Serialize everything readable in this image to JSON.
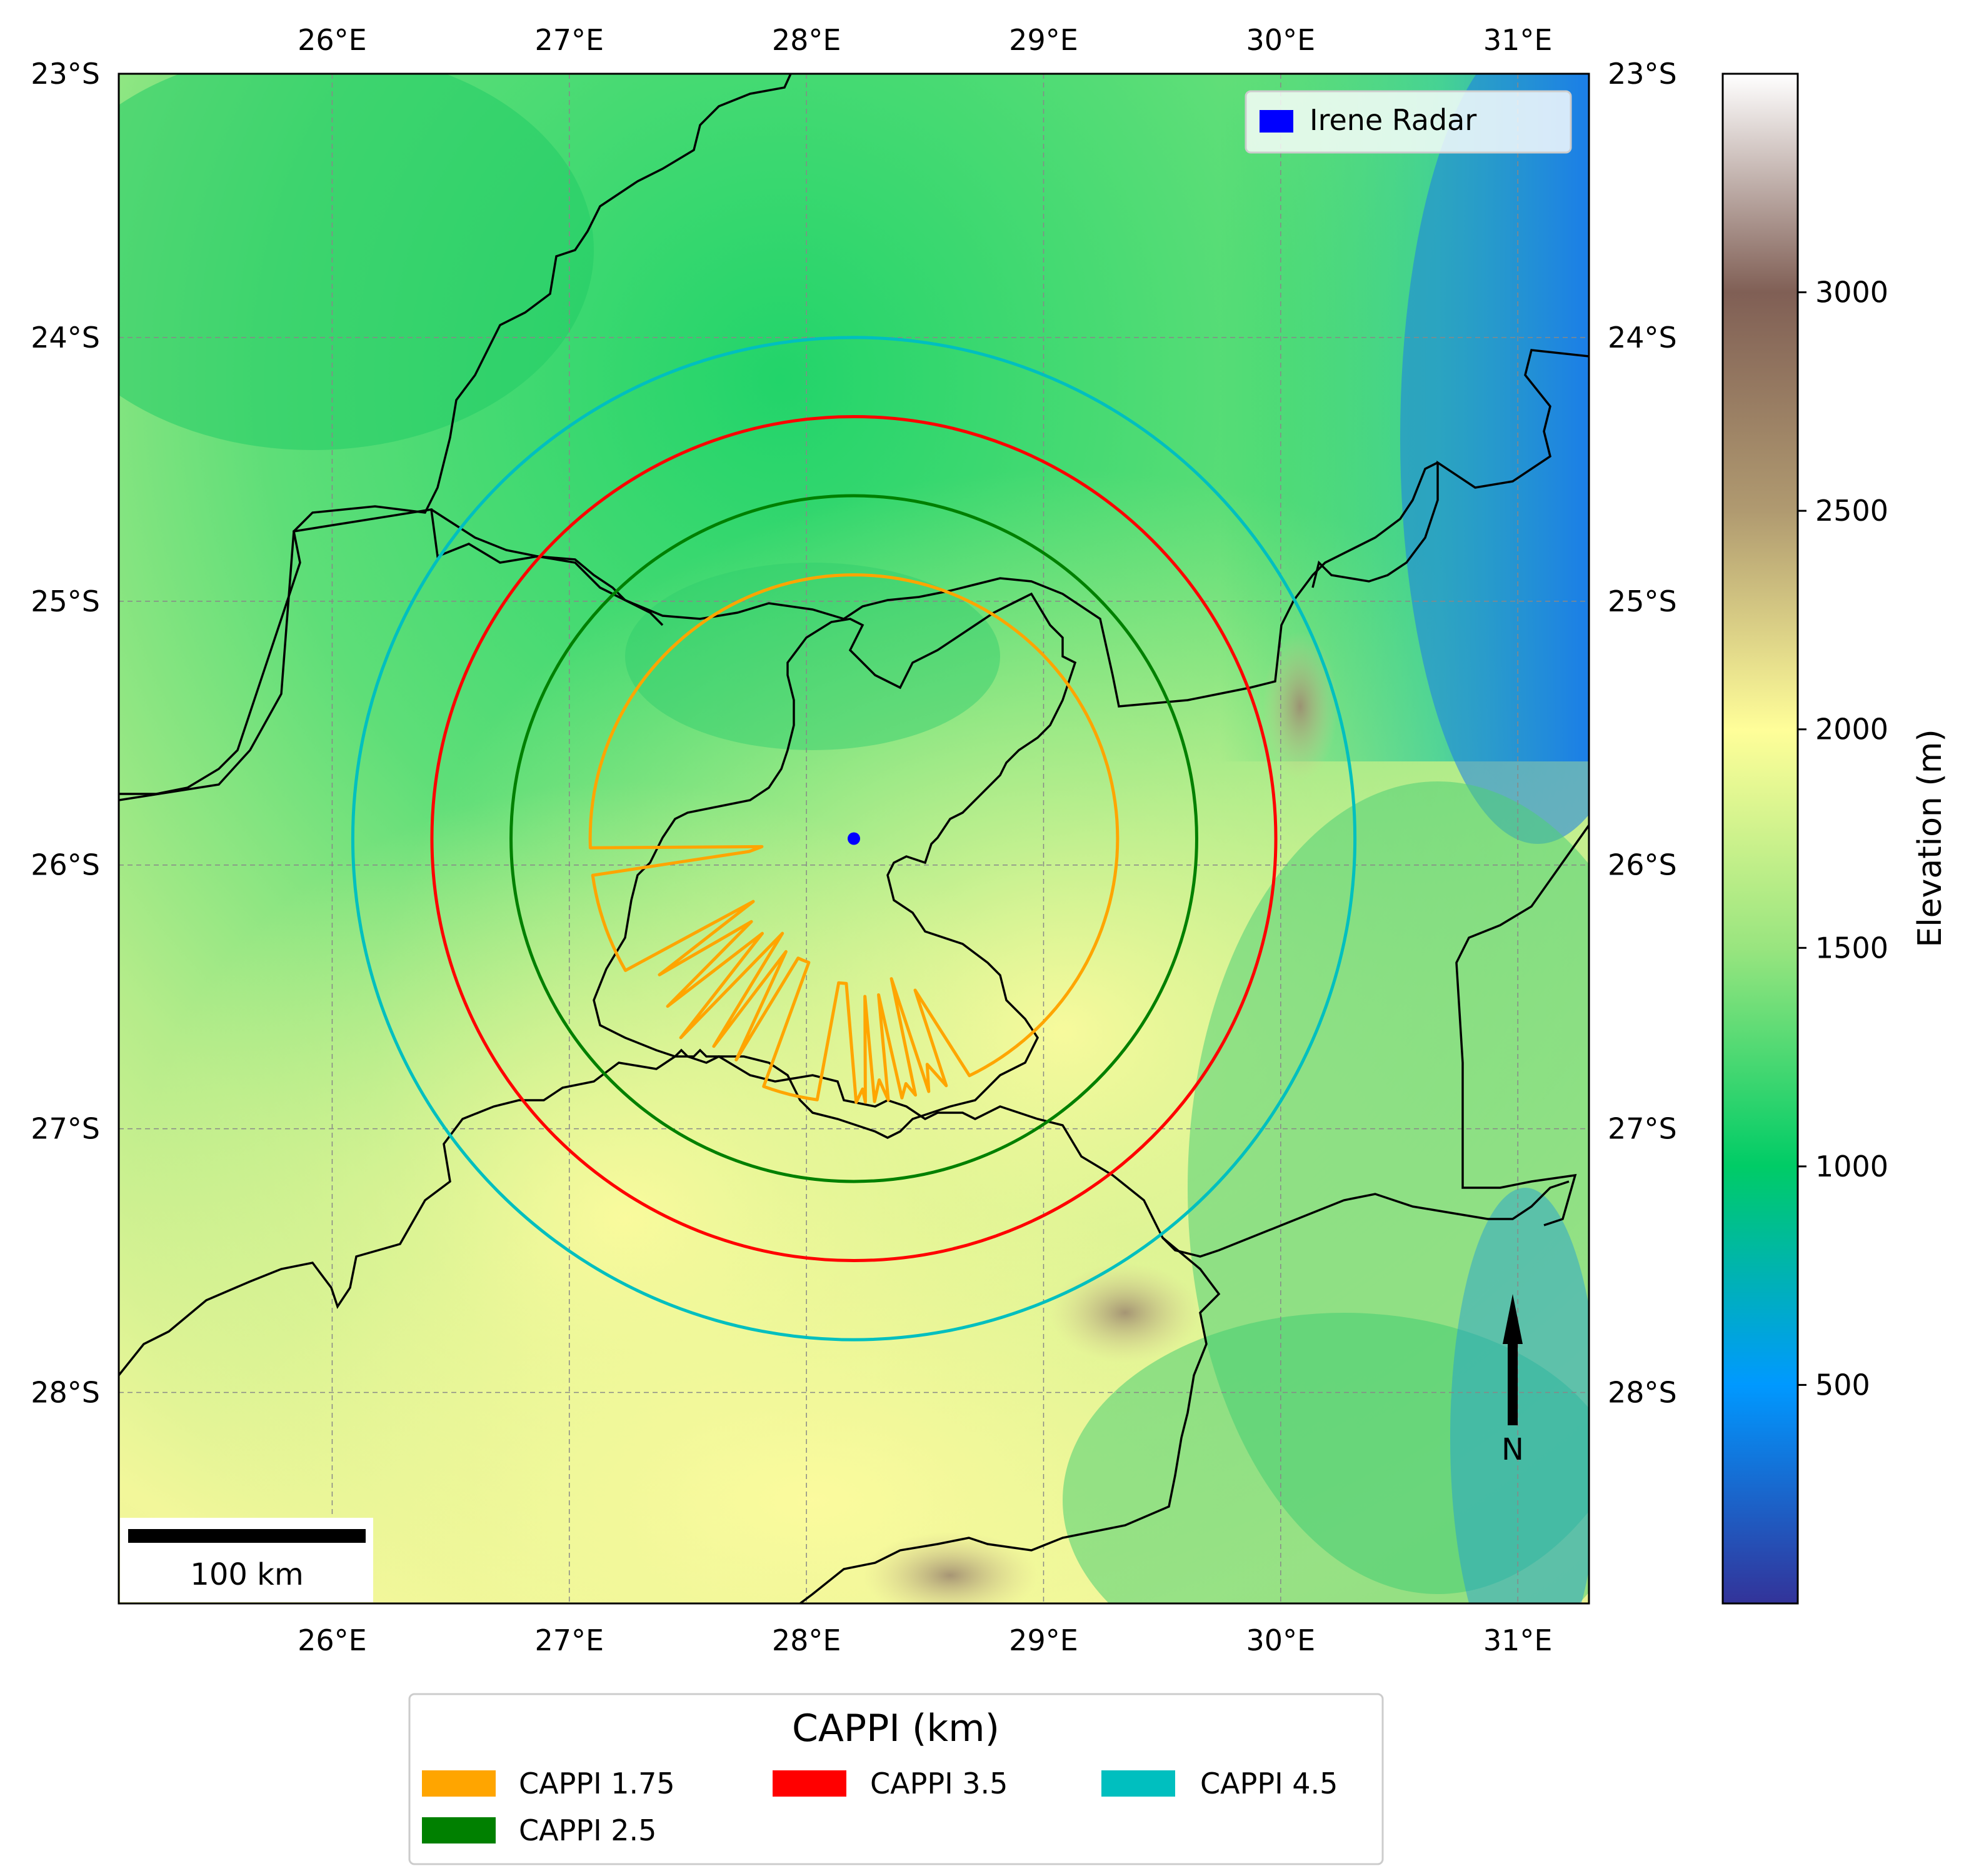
{
  "map": {
    "lon_labels": [
      "26°E",
      "27°E",
      "28°E",
      "29°E",
      "30°E",
      "31°E"
    ],
    "lat_labels": [
      "23°S",
      "24°S",
      "25°S",
      "26°S",
      "27°S",
      "28°S"
    ],
    "lon_values": [
      26,
      27,
      28,
      29,
      30,
      31
    ],
    "lat_values": [
      -23,
      -24,
      -25,
      -26,
      -27,
      -28
    ],
    "extent": {
      "lon_min": 25.1,
      "lon_max": 31.3,
      "lat_min": -28.8,
      "lat_max": -23.0
    },
    "radar": {
      "name": "Irene Radar",
      "lon": 28.2,
      "lat": -25.9,
      "color": "#0000ff"
    },
    "scale_bar_label": "100 km",
    "north_label": "N"
  },
  "radar_legend": {
    "entries": [
      {
        "label": "Irene Radar",
        "color": "#0000ff"
      }
    ]
  },
  "colorbar": {
    "title": "Elevation (m)",
    "ticks": [
      "500",
      "1000",
      "1500",
      "2000",
      "2500",
      "3000"
    ],
    "tick_values": [
      500,
      1000,
      1500,
      2000,
      2500,
      3000
    ],
    "min": 0,
    "max": 3500,
    "colors": [
      "#333399",
      "#0099ff",
      "#00cc66",
      "#99e57f",
      "#fffe99",
      "#b09a70",
      "#805f55",
      "#ffffff"
    ]
  },
  "cappi_legend": {
    "title": "CAPPI (km)",
    "entries": [
      {
        "label": "CAPPI 1.75",
        "color": "#ffa500"
      },
      {
        "label": "CAPPI 3.5",
        "color": "#ff0000"
      },
      {
        "label": "CAPPI 4.5",
        "color": "#00bfbf"
      },
      {
        "label": "CAPPI 2.5",
        "color": "#008000"
      }
    ]
  },
  "chart_data": {
    "type": "map",
    "title": "",
    "extent_lon": [
      25.1,
      31.3
    ],
    "extent_lat": [
      -28.8,
      -23.0
    ],
    "radar_location": {
      "name": "Irene Radar",
      "lon": 28.2,
      "lat": -25.9
    },
    "cappi_rings": [
      {
        "name": "CAPPI 1.75",
        "color": "#ffa500",
        "radius_deg_lat": 1.0
      },
      {
        "name": "CAPPI 2.5",
        "color": "#008000",
        "radius_deg_lat": 1.3
      },
      {
        "name": "CAPPI 3.5",
        "color": "#ff0000",
        "radius_deg_lat": 1.6
      },
      {
        "name": "CAPPI 4.5",
        "color": "#00bfbf",
        "radius_deg_lat": 1.9
      }
    ],
    "colorbar_label": "Elevation (m)",
    "colorbar_ticks": [
      500,
      1000,
      1500,
      2000,
      2500,
      3000
    ]
  }
}
